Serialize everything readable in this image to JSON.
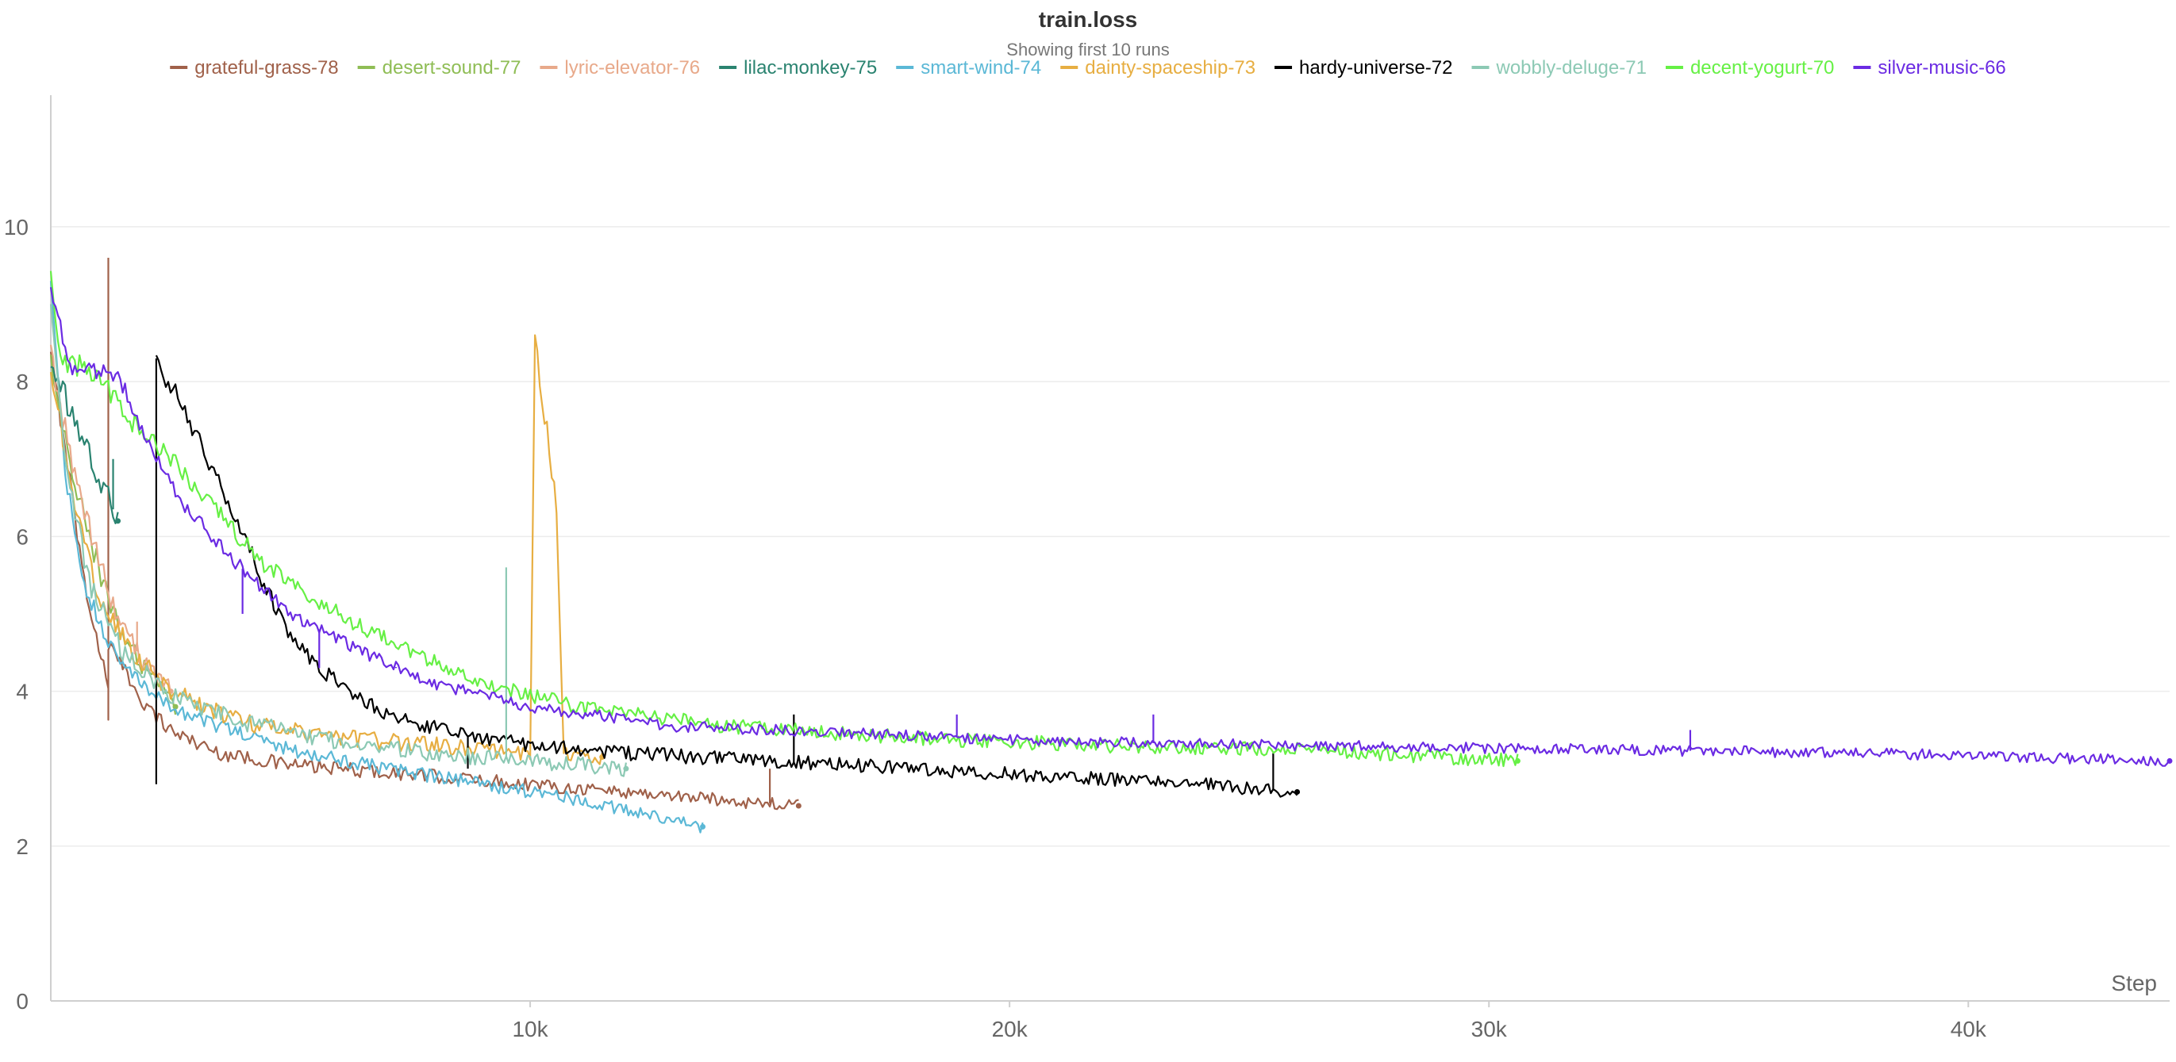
{
  "chart_data": {
    "type": "line",
    "title": "train.loss",
    "subtitle": "Showing first 10 runs",
    "xlabel": "Step",
    "ylabel": "",
    "xlim": [
      0,
      44200
    ],
    "ylim": [
      0,
      11.7
    ],
    "x_ticks": [
      10000,
      20000,
      30000,
      40000
    ],
    "x_tick_labels": [
      "10k",
      "20k",
      "30k",
      "40k"
    ],
    "y_ticks": [
      0,
      2,
      4,
      6,
      8,
      10
    ],
    "y_tick_labels": [
      "0",
      "2",
      "4",
      "6",
      "8",
      "10"
    ],
    "grid": true,
    "legend_position": "top",
    "series": [
      {
        "name": "grateful-grass-78",
        "color": "#a0614a",
        "end_step": 15600,
        "y_end": 2.52,
        "noise": 0.06,
        "points": [
          [
            0,
            8.3
          ],
          [
            300,
            7.2
          ],
          [
            600,
            5.8
          ],
          [
            900,
            4.8
          ],
          [
            1200,
            4.1
          ],
          [
            1200,
            3.7
          ],
          [
            1200,
            4.6
          ],
          [
            2000,
            3.8
          ],
          [
            2500,
            3.5
          ],
          [
            3500,
            3.2
          ],
          [
            5000,
            3.05
          ],
          [
            7000,
            2.95
          ],
          [
            9000,
            2.85
          ],
          [
            11000,
            2.75
          ],
          [
            13000,
            2.65
          ],
          [
            15600,
            2.52
          ]
        ],
        "spikes": [
          [
            1200,
            9.6
          ],
          [
            15000,
            3.0
          ]
        ]
      },
      {
        "name": "desert-sound-77",
        "color": "#8fbd55",
        "end_step": 2600,
        "y_end": 3.8,
        "noise": 0.08,
        "points": [
          [
            0,
            8.2
          ],
          [
            400,
            7.0
          ],
          [
            800,
            6.0
          ],
          [
            1300,
            5.0
          ],
          [
            1900,
            4.3
          ],
          [
            2600,
            3.8
          ]
        ],
        "spikes": []
      },
      {
        "name": "lyric-elevator-76",
        "color": "#e8a98a",
        "end_step": 2500,
        "y_end": 4.0,
        "noise": 0.08,
        "points": [
          [
            0,
            8.3
          ],
          [
            400,
            7.1
          ],
          [
            800,
            6.1
          ],
          [
            1300,
            5.1
          ],
          [
            1900,
            4.4
          ],
          [
            2500,
            4.0
          ]
        ],
        "spikes": [
          [
            1800,
            4.9
          ]
        ]
      },
      {
        "name": "lilac-monkey-75",
        "color": "#2a8370",
        "end_step": 1400,
        "y_end": 6.2,
        "noise": 0.08,
        "points": [
          [
            0,
            8.3
          ],
          [
            300,
            7.8
          ],
          [
            700,
            7.2
          ],
          [
            1000,
            6.8
          ],
          [
            1400,
            6.2
          ]
        ],
        "spikes": [
          [
            1300,
            7.0
          ]
        ]
      },
      {
        "name": "smart-wind-74",
        "color": "#5bb8d6",
        "end_step": 13600,
        "y_end": 2.25,
        "noise": 0.06,
        "points": [
          [
            0,
            9.3
          ],
          [
            300,
            6.8
          ],
          [
            700,
            5.4
          ],
          [
            1200,
            4.6
          ],
          [
            2000,
            4.0
          ],
          [
            3000,
            3.65
          ],
          [
            5000,
            3.25
          ],
          [
            7000,
            3.0
          ],
          [
            9000,
            2.8
          ],
          [
            11000,
            2.6
          ],
          [
            13600,
            2.25
          ]
        ],
        "spikes": []
      },
      {
        "name": "dainty-spaceship-73",
        "color": "#e7ae42",
        "end_step": 11500,
        "y_end": 3.15,
        "noise": 0.07,
        "points": [
          [
            0,
            8.2
          ],
          [
            500,
            6.4
          ],
          [
            1000,
            5.2
          ],
          [
            1700,
            4.5
          ],
          [
            2500,
            4.0
          ],
          [
            4000,
            3.6
          ],
          [
            6000,
            3.4
          ],
          [
            8000,
            3.3
          ],
          [
            10000,
            3.2
          ],
          [
            10100,
            8.6
          ],
          [
            10300,
            7.6
          ],
          [
            10550,
            6.3
          ],
          [
            10700,
            3.2
          ],
          [
            11500,
            3.15
          ]
        ],
        "spikes": []
      },
      {
        "name": "hardy-universe-72",
        "color": "#000000",
        "end_step": 26000,
        "y_end": 2.7,
        "noise": 0.06,
        "points": [
          [
            2200,
            8.3
          ],
          [
            2800,
            7.6
          ],
          [
            3400,
            6.8
          ],
          [
            4000,
            6.1
          ],
          [
            4500,
            5.3
          ],
          [
            5000,
            4.7
          ],
          [
            5600,
            4.3
          ],
          [
            6200,
            4.0
          ],
          [
            7000,
            3.7
          ],
          [
            8500,
            3.45
          ],
          [
            10000,
            3.3
          ],
          [
            12000,
            3.2
          ],
          [
            15000,
            3.1
          ],
          [
            18000,
            3.0
          ],
          [
            21000,
            2.9
          ],
          [
            24000,
            2.8
          ],
          [
            26000,
            2.7
          ]
        ],
        "spikes": [
          [
            2200,
            2.8
          ],
          [
            8700,
            3.0
          ],
          [
            15500,
            3.7
          ],
          [
            25500,
            3.2
          ]
        ]
      },
      {
        "name": "wobbly-deluge-71",
        "color": "#8cc9b4",
        "end_step": 12000,
        "y_end": 3.0,
        "noise": 0.07,
        "points": [
          [
            0,
            9.0
          ],
          [
            300,
            7.0
          ],
          [
            800,
            5.4
          ],
          [
            1500,
            4.5
          ],
          [
            2500,
            3.95
          ],
          [
            4000,
            3.6
          ],
          [
            6000,
            3.35
          ],
          [
            8000,
            3.2
          ],
          [
            10000,
            3.1
          ],
          [
            12000,
            3.0
          ]
        ],
        "spikes": [
          [
            9500,
            5.6
          ]
        ]
      },
      {
        "name": "decent-yogurt-70",
        "color": "#66f045",
        "end_step": 30600,
        "y_end": 3.1,
        "noise": 0.06,
        "points": [
          [
            0,
            9.3
          ],
          [
            200,
            8.3
          ],
          [
            1000,
            8.1
          ],
          [
            1500,
            7.6
          ],
          [
            2500,
            7.0
          ],
          [
            3500,
            6.3
          ],
          [
            4500,
            5.6
          ],
          [
            6000,
            5.0
          ],
          [
            7500,
            4.5
          ],
          [
            9000,
            4.1
          ],
          [
            11000,
            3.8
          ],
          [
            14000,
            3.55
          ],
          [
            18000,
            3.4
          ],
          [
            22000,
            3.3
          ],
          [
            26000,
            3.25
          ],
          [
            30600,
            3.1
          ]
        ],
        "spikes": []
      },
      {
        "name": "silver-music-66",
        "color": "#6b2be3",
        "end_step": 44200,
        "y_end": 3.1,
        "noise": 0.045,
        "points": [
          [
            0,
            9.2
          ],
          [
            400,
            8.2
          ],
          [
            1400,
            8.1
          ],
          [
            2000,
            7.2
          ],
          [
            2800,
            6.4
          ],
          [
            3800,
            5.7
          ],
          [
            5000,
            5.0
          ],
          [
            6500,
            4.5
          ],
          [
            8000,
            4.1
          ],
          [
            10000,
            3.8
          ],
          [
            13000,
            3.55
          ],
          [
            17000,
            3.45
          ],
          [
            21000,
            3.35
          ],
          [
            26000,
            3.3
          ],
          [
            32000,
            3.25
          ],
          [
            38000,
            3.2
          ],
          [
            44200,
            3.1
          ]
        ],
        "spikes": [
          [
            4000,
            5.0
          ],
          [
            5600,
            4.3
          ],
          [
            7200,
            4.3
          ],
          [
            18900,
            3.7
          ],
          [
            23000,
            3.7
          ],
          [
            34200,
            3.5
          ]
        ]
      }
    ]
  }
}
